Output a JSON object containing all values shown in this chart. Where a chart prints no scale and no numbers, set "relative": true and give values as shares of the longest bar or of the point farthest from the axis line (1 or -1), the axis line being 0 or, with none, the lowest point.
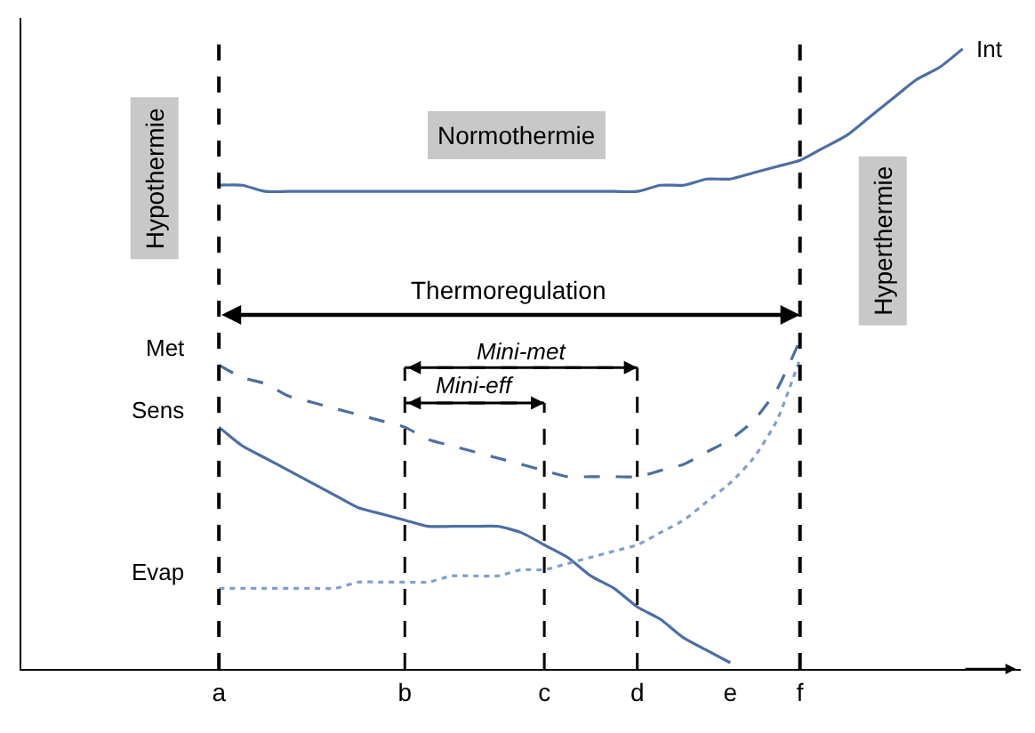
{
  "chart_data": {
    "type": "line",
    "relative": true,
    "legend": false,
    "categories": [
      null,
      null,
      null,
      null,
      null,
      null,
      null,
      null,
      null,
      "a",
      null,
      null,
      null,
      null,
      null,
      null,
      null,
      "b",
      null,
      null,
      null,
      null,
      null,
      "c",
      null,
      null,
      null,
      "d",
      null,
      null,
      null,
      "e",
      null,
      null,
      "f",
      null,
      null,
      null,
      null,
      null,
      null,
      null
    ],
    "series": [
      {
        "name": "Int",
        "color": "#4a6fa5",
        "line_style": "solid",
        "values": [
          null,
          null,
          null,
          null,
          null,
          null,
          null,
          null,
          null,
          0.78,
          0.78,
          0.77,
          0.77,
          0.77,
          0.77,
          0.77,
          0.77,
          0.77,
          0.77,
          0.77,
          0.77,
          0.77,
          0.77,
          0.77,
          0.77,
          0.77,
          0.77,
          0.77,
          0.78,
          0.78,
          0.79,
          0.79,
          0.8,
          0.81,
          0.82,
          0.84,
          0.86,
          0.89,
          0.92,
          0.95,
          0.97,
          1.0
        ]
      },
      {
        "name": "Met",
        "color": "#4a6fa5",
        "line_style": "dashed",
        "values": [
          null,
          null,
          null,
          null,
          null,
          null,
          null,
          null,
          null,
          0.49,
          0.47,
          0.46,
          0.44,
          0.43,
          0.42,
          0.41,
          0.4,
          0.39,
          0.37,
          0.36,
          0.35,
          0.34,
          0.33,
          0.32,
          0.31,
          0.31,
          0.31,
          0.31,
          0.32,
          0.33,
          0.35,
          0.37,
          0.4,
          0.45,
          0.53,
          null,
          null,
          null,
          null,
          null,
          null,
          null
        ]
      },
      {
        "name": "Sens",
        "color": "#4a6fa5",
        "line_style": "solid",
        "values": [
          null,
          null,
          null,
          null,
          null,
          null,
          null,
          null,
          null,
          0.39,
          0.36,
          0.34,
          0.32,
          0.3,
          0.28,
          0.26,
          0.25,
          0.24,
          0.23,
          0.23,
          0.23,
          0.23,
          0.22,
          0.2,
          0.18,
          0.15,
          0.13,
          0.1,
          0.08,
          0.05,
          0.03,
          0.01,
          null,
          null,
          null,
          null,
          null,
          null,
          null,
          null,
          null,
          null
        ]
      },
      {
        "name": "Evap",
        "color": "#7f9fcf",
        "line_style": "dotted",
        "values": [
          null,
          null,
          null,
          null,
          null,
          null,
          null,
          null,
          null,
          0.13,
          0.13,
          0.13,
          0.13,
          0.13,
          0.13,
          0.14,
          0.14,
          0.14,
          0.14,
          0.15,
          0.15,
          0.15,
          0.16,
          0.16,
          0.17,
          0.18,
          0.19,
          0.2,
          0.22,
          0.24,
          0.27,
          0.3,
          0.34,
          0.4,
          0.5,
          null,
          null,
          null,
          null,
          null,
          null,
          null
        ]
      }
    ],
    "ref_lines": [
      {
        "axis": "x",
        "value": "a",
        "color": "#000000",
        "line_style": "dashed"
      },
      {
        "axis": "x",
        "value": "b",
        "color": "#000000",
        "line_style": "dashed"
      },
      {
        "axis": "x",
        "value": "c",
        "color": "#000000",
        "line_style": "dashed"
      },
      {
        "axis": "x",
        "value": "d",
        "color": "#000000",
        "line_style": "dashed"
      },
      {
        "axis": "x",
        "value": "f",
        "color": "#000000",
        "line_style": "dashed"
      }
    ],
    "annotations": [
      "Hypothermie",
      "Normothermie",
      "Hyperthermie",
      "Thermoregulation",
      "Mini-met",
      "Mini-eff"
    ]
  }
}
